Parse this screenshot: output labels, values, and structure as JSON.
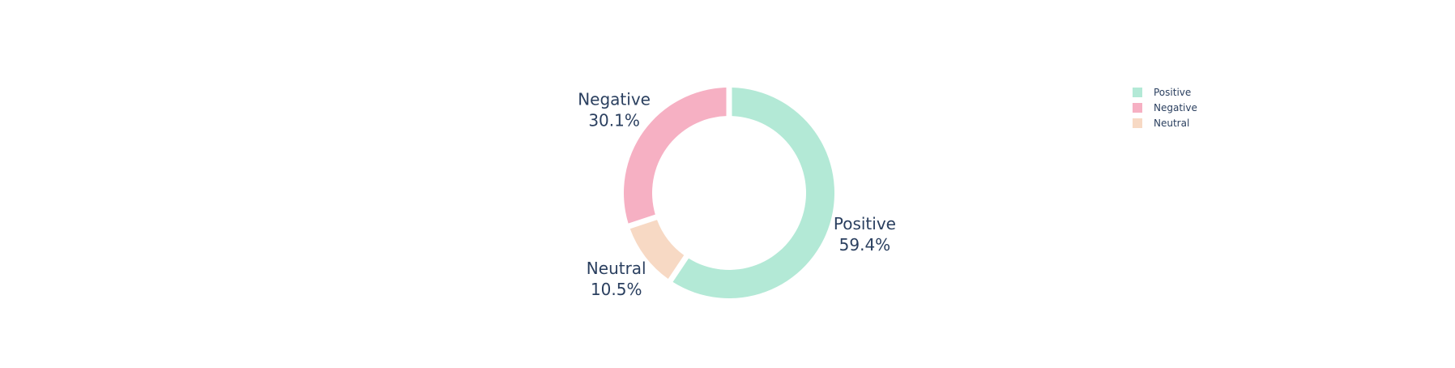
{
  "chart_data": {
    "type": "pie",
    "hole": true,
    "slices": [
      {
        "label": "Positive",
        "percent_text": "59.4%",
        "value": 59.4,
        "color": "#b3e9d6"
      },
      {
        "label": "Negative",
        "percent_text": "30.1%",
        "value": 30.1,
        "color": "#f6b0c3"
      },
      {
        "label": "Neutral",
        "percent_text": "10.5%",
        "value": 10.5,
        "color": "#f7d9c4"
      }
    ],
    "legend": {
      "placement": "top-right",
      "entries": [
        "Positive",
        "Negative",
        "Neutral"
      ]
    }
  }
}
